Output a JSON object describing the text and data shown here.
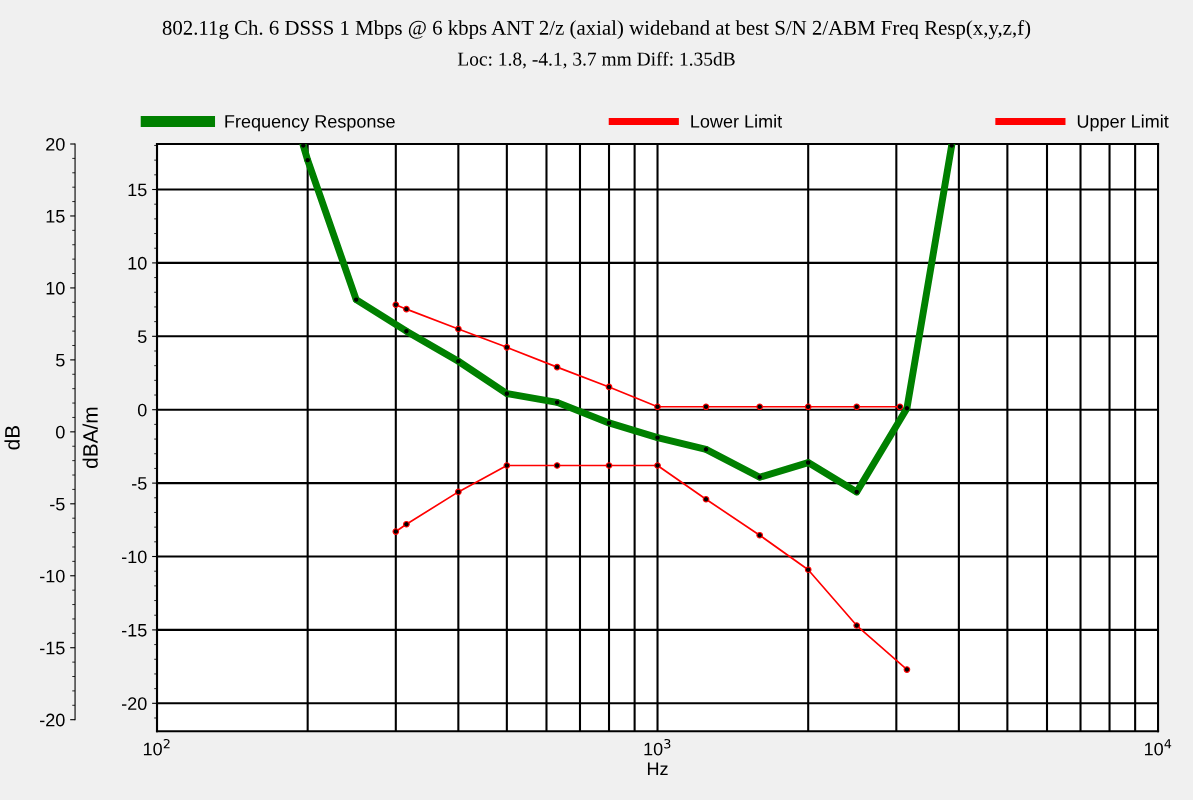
{
  "chart_data": {
    "type": "line",
    "title": "802.11g Ch. 6 DSSS 1 Mbps @ 6 kbps ANT 2/z (axial) wideband at best S/N 2/ABM Freq Resp(x,y,z,f)",
    "subtitle": "Loc: 1.8, -4.1, 3.7 mm Diff: 1.35dB",
    "xlabel": "Hz",
    "ylabel": "dBA/m",
    "y3label": "dB",
    "log": "x",
    "xlim": [
      100,
      10000
    ],
    "xticks": [
      {
        "value": 100,
        "label": "10$^{2}$"
      },
      {
        "value": 200,
        "label": null
      },
      {
        "value": 300,
        "label": null
      },
      {
        "value": 400,
        "label": null
      },
      {
        "value": 500,
        "label": null
      },
      {
        "value": 600,
        "label": null
      },
      {
        "value": 700,
        "label": null
      },
      {
        "value": 800,
        "label": null
      },
      {
        "value": 900,
        "label": null
      },
      {
        "value": 1000,
        "label": "10$^{3}$"
      },
      {
        "value": 2000,
        "label": null
      },
      {
        "value": 3000,
        "label": null
      },
      {
        "value": 4000,
        "label": null
      },
      {
        "value": 5000,
        "label": null
      },
      {
        "value": 6000,
        "label": null
      },
      {
        "value": 7000,
        "label": null
      },
      {
        "value": 8000,
        "label": null
      },
      {
        "value": 9000,
        "label": null
      },
      {
        "value": 10000,
        "label": "10$^{4}$"
      }
    ],
    "ylim": [
      -21.9,
      18.1
    ],
    "yticks": [
      -20,
      -15,
      -10,
      -5,
      0,
      5,
      10,
      15
    ],
    "y3lim": [
      -20.8,
      20
    ],
    "y3ticks": [
      -20,
      -15,
      -10,
      -5,
      0,
      5,
      10,
      15,
      20
    ],
    "grid": true,
    "legend": "top",
    "marker": "circle",
    "line_style": "solid",
    "series": [
      {
        "name": "Frequency Response",
        "color": "#008000",
        "x": [
          196,
          200,
          250,
          315,
          400,
          500,
          630,
          800,
          1000,
          1250,
          1600,
          2000,
          2500,
          3150,
          3870
        ],
        "values": [
          18.0,
          17.0,
          7.5,
          5.35,
          3.3,
          1.1,
          0.5,
          -0.9,
          -1.9,
          -2.7,
          -4.6,
          -3.6,
          -5.6,
          0.1,
          18.0
        ]
      },
      {
        "name": "Lower Limit",
        "color": "#ff0000",
        "x": [
          300,
          315,
          400,
          500,
          630,
          800,
          1000,
          1250,
          1600,
          2000,
          2500,
          3150
        ],
        "values": [
          -8.3,
          -7.8,
          -5.6,
          -3.8,
          -3.8,
          -3.8,
          -3.8,
          -6.1,
          -8.55,
          -10.9,
          -14.7,
          -17.7
        ]
      },
      {
        "name": "Upper Limit",
        "color": "#ff0000",
        "x": [
          300,
          315,
          400,
          500,
          630,
          800,
          1000,
          1250,
          1600,
          2000,
          2500,
          3050
        ],
        "values": [
          7.15,
          6.85,
          5.5,
          4.25,
          2.9,
          1.55,
          0.2,
          0.2,
          0.2,
          0.2,
          0.2,
          0.2
        ]
      }
    ]
  }
}
